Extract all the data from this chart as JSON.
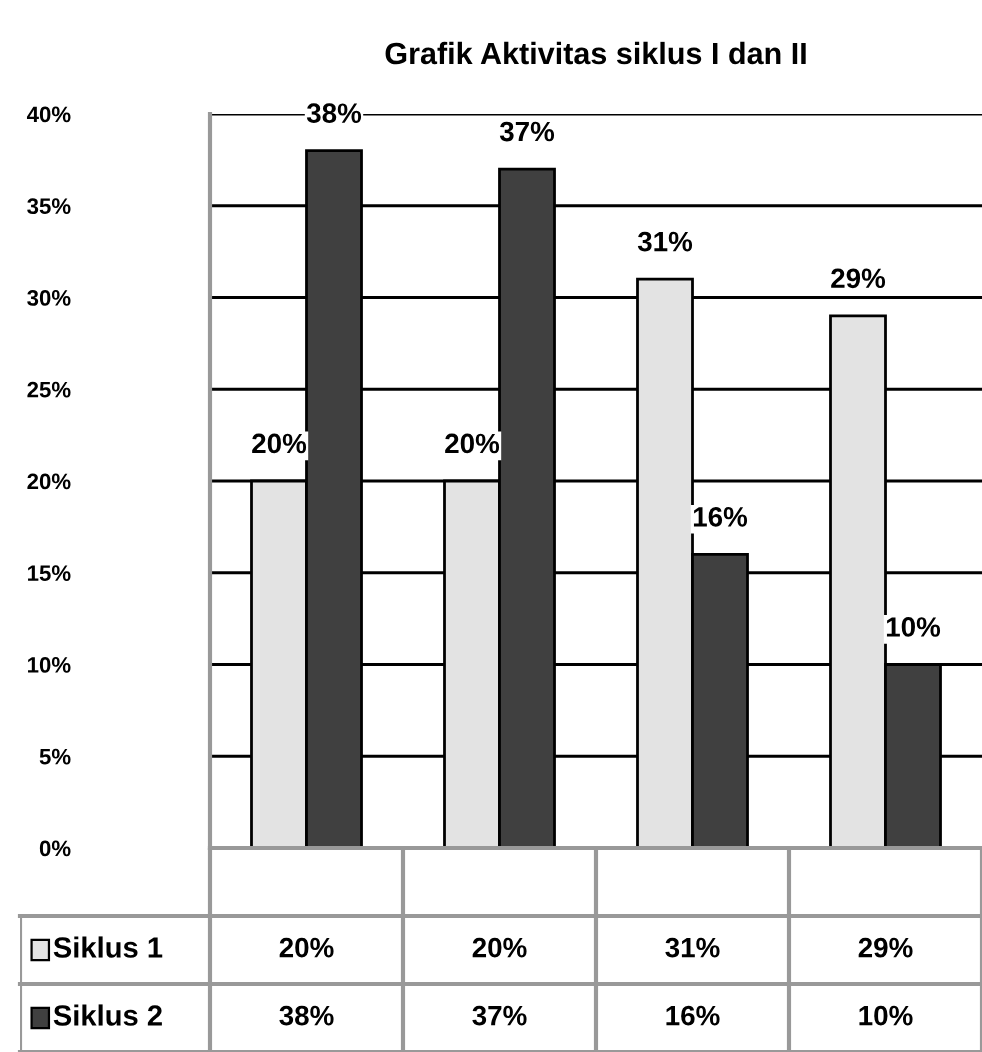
{
  "chart_data": {
    "type": "bar",
    "title": "Grafik Aktivitas siklus I dan II",
    "categories": [
      null,
      null,
      null,
      null
    ],
    "series": [
      {
        "name": "Siklus 1",
        "color": "#e3e3e3",
        "values": [
          20,
          20,
          31,
          29
        ],
        "value_labels": [
          "20%",
          "20%",
          "31%",
          "29%"
        ]
      },
      {
        "name": "Siklus 2",
        "color": "#404040",
        "values": [
          38,
          37,
          16,
          10
        ],
        "value_labels": [
          "38%",
          "37%",
          "16%",
          "10%"
        ]
      }
    ],
    "ylim": [
      0,
      40
    ],
    "yticks": [
      {
        "value": 0,
        "label": "0%"
      },
      {
        "value": 5,
        "label": "5%"
      },
      {
        "value": 10,
        "label": "10%"
      },
      {
        "value": 15,
        "label": "15%"
      },
      {
        "value": 20,
        "label": "20%"
      },
      {
        "value": 25,
        "label": "25%"
      },
      {
        "value": 30,
        "label": "30%"
      },
      {
        "value": 35,
        "label": "35%"
      },
      {
        "value": 40,
        "label": "40%"
      }
    ],
    "grid": "y",
    "legend": "bottom"
  }
}
